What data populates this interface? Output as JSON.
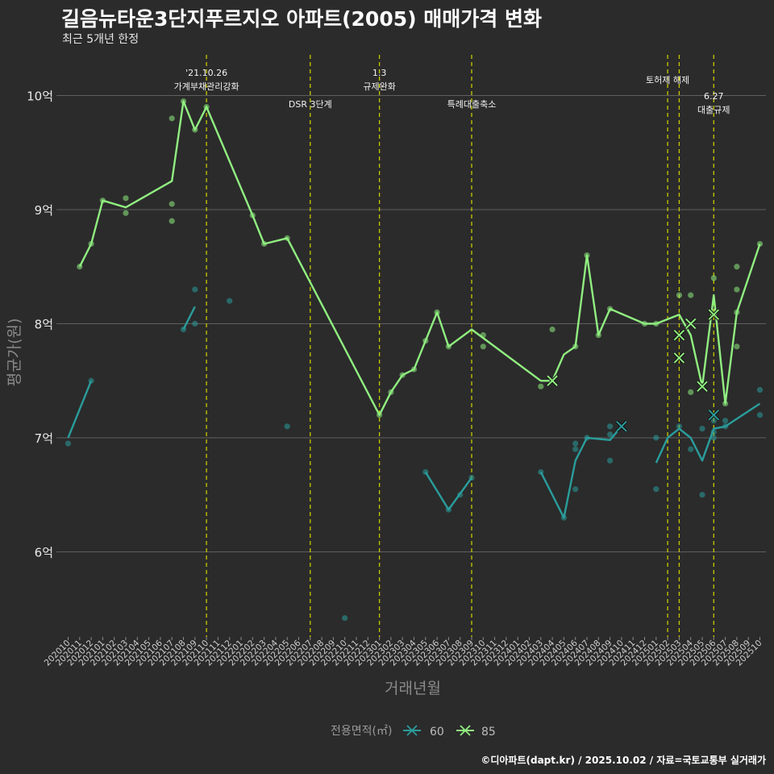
{
  "title": "길음뉴타운3단지푸르지오 아파트(2005) 매매가격 변화",
  "subtitle": "최근 5개년 한정",
  "caption": "©디아파트(dapt.kr) / 2025.10.02 / 자료=국토교통부 실거래가",
  "colors": {
    "s60": "#2a9d9c",
    "s85": "#90ee80",
    "event": "#c8c800",
    "grid": "#5f5f5f"
  },
  "chart_data": {
    "type": "line",
    "xlabel": "거래년월",
    "ylabel": "평균가(원)",
    "y_unit": "억",
    "ylim": [
      5.2,
      10.5
    ],
    "yticks": [
      6,
      7,
      8,
      9,
      10
    ],
    "ytick_labels": [
      "6억",
      "7억",
      "8억",
      "9억",
      "10억"
    ],
    "grid": true,
    "legend": {
      "title": "전용면적(㎡)",
      "position": "bottom",
      "entries": [
        "60",
        "85"
      ]
    },
    "months": [
      "202010",
      "202011",
      "202012",
      "202101",
      "202102",
      "202103",
      "202104",
      "202105",
      "202106",
      "202107",
      "202108",
      "202109",
      "202110",
      "202111",
      "202112",
      "202201",
      "202202",
      "202203",
      "202204",
      "202205",
      "202206",
      "202207",
      "202208",
      "202209",
      "202210",
      "202211",
      "202212",
      "202301",
      "202302",
      "202303",
      "202304",
      "202305",
      "202306",
      "202307",
      "202308",
      "202309",
      "202310",
      "202311",
      "202312",
      "202401",
      "202402",
      "202403",
      "202404",
      "202405",
      "202406",
      "202407",
      "202408",
      "202409",
      "202410",
      "202411",
      "202412",
      "202501",
      "202502",
      "202503",
      "202504",
      "202505",
      "202506",
      "202507",
      "202508",
      "202509",
      "202510"
    ],
    "events": [
      {
        "month": "202110",
        "lines": [
          "'21.10.26",
          "가계부채관리강화"
        ],
        "level": 1
      },
      {
        "month": "202207",
        "lines": [
          "DSR 3단계"
        ],
        "level": 3
      },
      {
        "month": "202301",
        "lines": [
          "1.3",
          "규제완화"
        ],
        "level": 1
      },
      {
        "month": "202309",
        "lines": [
          "특례대출축소"
        ],
        "level": 3
      },
      {
        "month": "202502",
        "lines": [
          "토허제 해제"
        ],
        "level": 2
      },
      {
        "month": "202503",
        "lines": [],
        "level": 2
      },
      {
        "month": "202506",
        "lines": [
          "6.27",
          "대출규제"
        ],
        "level": 4
      }
    ],
    "series": [
      {
        "name": "60",
        "line_segments": [
          [
            [
              "202010",
              7.0
            ],
            [
              "202012",
              7.5
            ]
          ],
          [
            [
              "202108",
              7.95
            ],
            [
              "202109",
              8.15
            ]
          ],
          [
            [
              "202305",
              6.7
            ],
            [
              "202307",
              6.37
            ],
            [
              "202309",
              6.65
            ]
          ],
          [
            [
              "202403",
              6.7
            ],
            [
              "202405",
              6.3
            ],
            [
              "202406",
              6.8
            ],
            [
              "202407",
              7.0
            ],
            [
              "202409",
              6.98
            ],
            [
              "202410",
              7.1
            ]
          ],
          [
            [
              "202501",
              6.78
            ],
            [
              "202502",
              7.0
            ],
            [
              "202503",
              7.08
            ],
            [
              "202504",
              7.0
            ],
            [
              "202505",
              6.8
            ],
            [
              "202506",
              7.08
            ],
            [
              "202507",
              7.1
            ],
            [
              "202510",
              7.3
            ]
          ]
        ],
        "points": [
          [
            "202010",
            6.95
          ],
          [
            "202012",
            7.5
          ],
          [
            "202108",
            7.95
          ],
          [
            "202109",
            8.3
          ],
          [
            "202109",
            8.0
          ],
          [
            "202112",
            8.2
          ],
          [
            "202205",
            7.1
          ],
          [
            "202210",
            5.42
          ],
          [
            "202305",
            6.7
          ],
          [
            "202307",
            6.37
          ],
          [
            "202308",
            6.5
          ],
          [
            "202309",
            6.65
          ],
          [
            "202403",
            6.7
          ],
          [
            "202405",
            6.3
          ],
          [
            "202406",
            6.95
          ],
          [
            "202406",
            6.9
          ],
          [
            "202406",
            6.55
          ],
          [
            "202407",
            7.0
          ],
          [
            "202409",
            7.1
          ],
          [
            "202409",
            7.03
          ],
          [
            "202409",
            6.8
          ],
          [
            "202501",
            7.0
          ],
          [
            "202501",
            6.55
          ],
          [
            "202503",
            7.1
          ],
          [
            "202504",
            6.9
          ],
          [
            "202505",
            6.5
          ],
          [
            "202505",
            7.08
          ],
          [
            "202506",
            7.15
          ],
          [
            "202506",
            7.05
          ],
          [
            "202506",
            7.0
          ],
          [
            "202507",
            7.15
          ],
          [
            "202507",
            7.1
          ],
          [
            "202510",
            7.42
          ],
          [
            "202510",
            7.2
          ]
        ],
        "cancelled": [
          [
            "202410",
            7.1
          ],
          [
            "202506",
            7.2
          ]
        ]
      },
      {
        "name": "85",
        "line_segments": [
          [
            [
              "202011",
              8.5
            ],
            [
              "202012",
              8.7
            ],
            [
              "202101",
              9.08
            ],
            [
              "202103",
              9.02
            ],
            [
              "202107",
              9.25
            ],
            [
              "202108",
              9.95
            ],
            [
              "202109",
              9.7
            ],
            [
              "202110",
              9.9
            ],
            [
              "202202",
              8.95
            ],
            [
              "202203",
              8.7
            ],
            [
              "202205",
              8.75
            ],
            [
              "202301",
              7.2
            ],
            [
              "202302",
              7.4
            ],
            [
              "202303",
              7.55
            ],
            [
              "202304",
              7.6
            ],
            [
              "202305",
              7.85
            ],
            [
              "202306",
              8.1
            ],
            [
              "202307",
              7.8
            ],
            [
              "202309",
              7.95
            ],
            [
              "202403",
              7.5
            ],
            [
              "202404",
              7.5
            ],
            [
              "202405",
              7.73
            ],
            [
              "202406",
              7.8
            ],
            [
              "202407",
              8.6
            ],
            [
              "202408",
              7.9
            ],
            [
              "202409",
              8.13
            ],
            [
              "202412",
              8.0
            ],
            [
              "202501",
              8.0
            ],
            [
              "202503",
              8.08
            ],
            [
              "202504",
              7.9
            ],
            [
              "202505",
              7.45
            ],
            [
              "202506",
              8.25
            ],
            [
              "202507",
              7.3
            ],
            [
              "202508",
              8.1
            ],
            [
              "202510",
              8.7
            ]
          ]
        ],
        "points": [
          [
            "202011",
            8.5
          ],
          [
            "202012",
            8.7
          ],
          [
            "202101",
            9.08
          ],
          [
            "202103",
            9.1
          ],
          [
            "202103",
            8.97
          ],
          [
            "202107",
            9.8
          ],
          [
            "202107",
            9.05
          ],
          [
            "202107",
            8.9
          ],
          [
            "202108",
            9.95
          ],
          [
            "202109",
            9.7
          ],
          [
            "202110",
            9.9
          ],
          [
            "202202",
            8.95
          ],
          [
            "202203",
            8.7
          ],
          [
            "202205",
            8.75
          ],
          [
            "202301",
            7.2
          ],
          [
            "202302",
            7.4
          ],
          [
            "202303",
            7.55
          ],
          [
            "202304",
            7.6
          ],
          [
            "202305",
            7.85
          ],
          [
            "202306",
            8.1
          ],
          [
            "202307",
            7.8
          ],
          [
            "202310",
            7.9
          ],
          [
            "202310",
            7.8
          ],
          [
            "202403",
            7.45
          ],
          [
            "202404",
            7.95
          ],
          [
            "202406",
            7.8
          ],
          [
            "202407",
            8.6
          ],
          [
            "202408",
            7.9
          ],
          [
            "202409",
            8.13
          ],
          [
            "202412",
            8.0
          ],
          [
            "202501",
            8.0
          ],
          [
            "202503",
            8.25
          ],
          [
            "202504",
            8.25
          ],
          [
            "202504",
            7.4
          ],
          [
            "202505",
            7.45
          ],
          [
            "202506",
            8.4
          ],
          [
            "202506",
            8.1
          ],
          [
            "202507",
            7.3
          ],
          [
            "202508",
            8.5
          ],
          [
            "202508",
            8.3
          ],
          [
            "202508",
            8.1
          ],
          [
            "202508",
            7.8
          ],
          [
            "202510",
            8.7
          ]
        ],
        "cancelled": [
          [
            "202404",
            7.5
          ],
          [
            "202503",
            7.9
          ],
          [
            "202503",
            7.7
          ],
          [
            "202504",
            8.0
          ],
          [
            "202505",
            7.45
          ],
          [
            "202506",
            8.08
          ]
        ]
      }
    ]
  }
}
